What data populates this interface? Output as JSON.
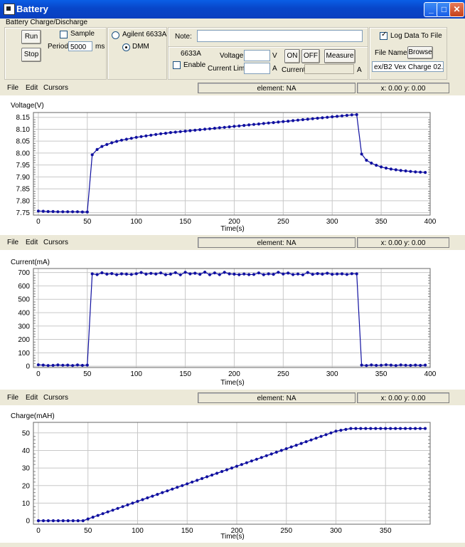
{
  "window": {
    "title": "Battery"
  },
  "panel": {
    "group_title": "Battery Charge/Discharge",
    "run_label": "Run",
    "stop_label": "Stop",
    "sample_label": "Sample",
    "period_label": "Period:",
    "period_value": "5000",
    "period_unit": "ms",
    "source_option_1": "Agilent 6633A",
    "source_option_2": "DMM",
    "note_label": "Note:",
    "note_value": "",
    "model_label": "6633A",
    "enable_label": "Enable",
    "voltage_label": "Voltage:",
    "voltage_value": "",
    "voltage_unit": "V",
    "current_limit_label": "Current Limit:",
    "current_limit_value": "",
    "current_limit_unit": "A",
    "current_label": "Current:",
    "current_value": "",
    "current_unit": "A",
    "on_label": "ON",
    "off_label": "OFF",
    "measure_label": "Measure",
    "log_label": "Log Data To File",
    "file_name_label": "File Name:",
    "browse_label": "Browse",
    "file_path": "ex/B2 Vex Charge 02.log"
  },
  "plot_menus": [
    {
      "file": "File",
      "edit": "Edit",
      "cursors": "Cursors",
      "element": "element: NA",
      "coords": "x: 0.00  y: 0.00"
    },
    {
      "file": "File",
      "edit": "Edit",
      "cursors": "Cursors",
      "element": "element: NA",
      "coords": "x: 0.00  y: 0.00"
    },
    {
      "file": "File",
      "edit": "Edit",
      "cursors": "Cursors",
      "element": "element: NA",
      "coords": "x: 0.00  y: 0.00"
    }
  ],
  "colors": {
    "series": "#1010a0",
    "grid": "#c8c8c8",
    "titlebar": "#0a4fd8"
  },
  "chart_data": [
    {
      "type": "line",
      "title": "Voltage(V)",
      "xlabel": "Time(s)",
      "xlim": [
        -5,
        400
      ],
      "ylim": [
        7.74,
        8.17
      ],
      "xticks": [
        0,
        50,
        100,
        150,
        200,
        250,
        300,
        350,
        400
      ],
      "yticks": [
        "7.75",
        "7.80",
        "7.85",
        "7.90",
        "7.95",
        "8.00",
        "8.05",
        "8.10",
        "8.15"
      ],
      "grid": true,
      "x": [
        0,
        5,
        10,
        15,
        20,
        25,
        30,
        35,
        40,
        45,
        50,
        55,
        60,
        65,
        70,
        75,
        80,
        85,
        90,
        95,
        100,
        105,
        110,
        115,
        120,
        125,
        130,
        135,
        140,
        145,
        150,
        155,
        160,
        165,
        170,
        175,
        180,
        185,
        190,
        195,
        200,
        205,
        210,
        215,
        220,
        225,
        230,
        235,
        240,
        245,
        250,
        255,
        260,
        265,
        270,
        275,
        280,
        285,
        290,
        295,
        300,
        305,
        310,
        315,
        320,
        325,
        330,
        335,
        340,
        345,
        350,
        355,
        360,
        365,
        370,
        375,
        380,
        385,
        390,
        395
      ],
      "y": [
        7.757,
        7.756,
        7.755,
        7.755,
        7.754,
        7.754,
        7.754,
        7.754,
        7.754,
        7.753,
        7.753,
        7.993,
        8.015,
        8.028,
        8.036,
        8.043,
        8.049,
        8.054,
        8.058,
        8.062,
        8.066,
        8.069,
        8.072,
        8.075,
        8.078,
        8.081,
        8.083,
        8.086,
        8.088,
        8.09,
        8.092,
        8.094,
        8.096,
        8.098,
        8.1,
        8.102,
        8.104,
        8.106,
        8.108,
        8.11,
        8.112,
        8.114,
        8.116,
        8.118,
        8.12,
        8.122,
        8.124,
        8.126,
        8.128,
        8.13,
        8.132,
        8.134,
        8.136,
        8.138,
        8.14,
        8.142,
        8.144,
        8.146,
        8.148,
        8.15,
        8.152,
        8.154,
        8.156,
        8.158,
        8.16,
        8.161,
        7.996,
        7.97,
        7.958,
        7.949,
        7.942,
        7.937,
        7.933,
        7.93,
        7.927,
        7.925,
        7.923,
        7.921,
        7.92,
        7.919
      ]
    },
    {
      "type": "line",
      "title": "Current(mA)",
      "xlabel": "Time(s)",
      "xlim": [
        -5,
        400
      ],
      "ylim": [
        -10,
        730
      ],
      "xticks": [
        0,
        50,
        100,
        150,
        200,
        250,
        300,
        350,
        400
      ],
      "yticks": [
        "0",
        "100",
        "200",
        "300",
        "400",
        "500",
        "600",
        "700"
      ],
      "grid": true,
      "x": [
        0,
        5,
        10,
        15,
        20,
        25,
        30,
        35,
        40,
        45,
        50,
        55,
        60,
        65,
        70,
        75,
        80,
        85,
        90,
        95,
        100,
        105,
        110,
        115,
        120,
        125,
        130,
        135,
        140,
        145,
        150,
        155,
        160,
        165,
        170,
        175,
        180,
        185,
        190,
        195,
        200,
        205,
        210,
        215,
        220,
        225,
        230,
        235,
        240,
        245,
        250,
        255,
        260,
        265,
        270,
        275,
        280,
        285,
        290,
        295,
        300,
        305,
        310,
        315,
        320,
        325,
        330,
        335,
        340,
        345,
        350,
        355,
        360,
        365,
        370,
        375,
        380,
        385,
        390,
        395
      ],
      "y": [
        10,
        8,
        5,
        6,
        9,
        7,
        8,
        5,
        9,
        6,
        8,
        690,
        685,
        698,
        688,
        692,
        684,
        690,
        688,
        686,
        691,
        700,
        688,
        694,
        689,
        697,
        684,
        688,
        699,
        683,
        702,
        690,
        695,
        687,
        703,
        684,
        697,
        685,
        701,
        690,
        688,
        684,
        689,
        685,
        686,
        697,
        684,
        690,
        687,
        702,
        689,
        696,
        685,
        689,
        683,
        700,
        687,
        692,
        688,
        695,
        687,
        689,
        690,
        686,
        691,
        690,
        8,
        5,
        9,
        6,
        7,
        10,
        8,
        5,
        9,
        7,
        6,
        8,
        6,
        8
      ]
    },
    {
      "type": "line",
      "title": "Charge(mAH)",
      "xlabel": "Time(s)",
      "xlim": [
        -5,
        395
      ],
      "ylim": [
        -2,
        56
      ],
      "xticks": [
        0,
        50,
        100,
        150,
        200,
        250,
        300,
        350
      ],
      "yticks": [
        "0",
        "10",
        "20",
        "30",
        "40",
        "50"
      ],
      "grid": true,
      "x": [
        0,
        5,
        10,
        15,
        20,
        25,
        30,
        35,
        40,
        45,
        50,
        55,
        60,
        65,
        70,
        75,
        80,
        85,
        90,
        95,
        100,
        105,
        110,
        115,
        120,
        125,
        130,
        135,
        140,
        145,
        150,
        155,
        160,
        165,
        170,
        175,
        180,
        185,
        190,
        195,
        200,
        205,
        210,
        215,
        220,
        225,
        230,
        235,
        240,
        245,
        250,
        255,
        260,
        265,
        270,
        275,
        280,
        285,
        290,
        295,
        300,
        305,
        310,
        315,
        320,
        325,
        330,
        335,
        340,
        345,
        350,
        355,
        360,
        365,
        370,
        375,
        380,
        385,
        390
      ],
      "y": [
        0,
        0,
        0,
        0,
        0,
        0,
        0,
        0,
        0,
        0,
        1,
        2,
        3,
        4,
        5,
        6,
        7,
        8,
        9,
        10,
        11,
        12,
        13,
        14,
        15,
        16,
        17,
        18,
        19,
        20,
        21,
        22,
        23,
        24,
        25,
        26,
        27,
        28,
        29,
        30,
        31,
        32,
        33,
        34,
        35,
        36,
        37,
        38,
        39,
        40,
        41,
        42,
        43,
        44,
        45,
        46,
        47,
        48,
        49,
        50,
        51,
        51.5,
        52,
        52.5,
        52.5,
        52.5,
        52.5,
        52.5,
        52.5,
        52.5,
        52.5,
        52.5,
        52.5,
        52.5,
        52.5,
        52.5,
        52.5,
        52.5,
        52.5
      ]
    }
  ]
}
